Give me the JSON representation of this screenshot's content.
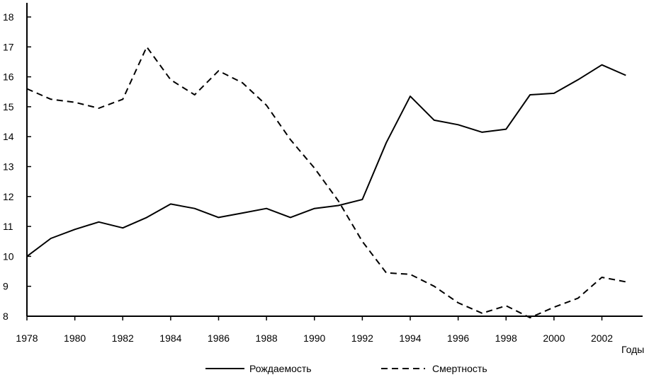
{
  "chart_data": {
    "type": "line",
    "xlabel": "Годы",
    "ylabel": "",
    "xlim": [
      1978,
      2003.7
    ],
    "ylim": [
      8,
      18
    ],
    "x_ticks": [
      1978,
      1980,
      1982,
      1984,
      1986,
      1988,
      1990,
      1992,
      1994,
      1996,
      1998,
      2000,
      2002
    ],
    "y_ticks": [
      8,
      9,
      10,
      11,
      12,
      13,
      14,
      15,
      16,
      17,
      18
    ],
    "grid": false,
    "legend_position": "bottom",
    "series": [
      {
        "name": "Рождаемость",
        "style": "solid",
        "x": [
          1978,
          1979,
          1980,
          1981,
          1982,
          1983,
          1984,
          1985,
          1986,
          1987,
          1988,
          1989,
          1990,
          1991,
          1992,
          1993,
          1994,
          1995,
          1996,
          1997,
          1998,
          1999,
          2000,
          2001,
          2002,
          2003
        ],
        "values": [
          10.0,
          10.6,
          10.9,
          11.15,
          10.95,
          11.3,
          11.75,
          11.6,
          11.3,
          11.45,
          11.6,
          11.3,
          11.6,
          11.7,
          11.9,
          13.8,
          15.35,
          14.55,
          14.4,
          14.15,
          14.25,
          15.4,
          15.45,
          15.9,
          16.4,
          16.05
        ]
      },
      {
        "name": "Смертность",
        "style": "dashed",
        "x": [
          1978,
          1979,
          1980,
          1981,
          1982,
          1983,
          1984,
          1985,
          1986,
          1987,
          1988,
          1989,
          1990,
          1991,
          1992,
          1993,
          1994,
          1995,
          1996,
          1997,
          1998,
          1999,
          2000,
          2001,
          2002,
          2003
        ],
        "values": [
          15.6,
          15.25,
          15.15,
          14.95,
          15.25,
          17.0,
          15.9,
          15.4,
          16.2,
          15.8,
          15.05,
          13.9,
          12.95,
          11.85,
          10.5,
          9.45,
          9.4,
          9.0,
          8.45,
          8.1,
          8.35,
          7.95,
          8.3,
          8.6,
          9.3,
          9.15
        ]
      }
    ]
  }
}
